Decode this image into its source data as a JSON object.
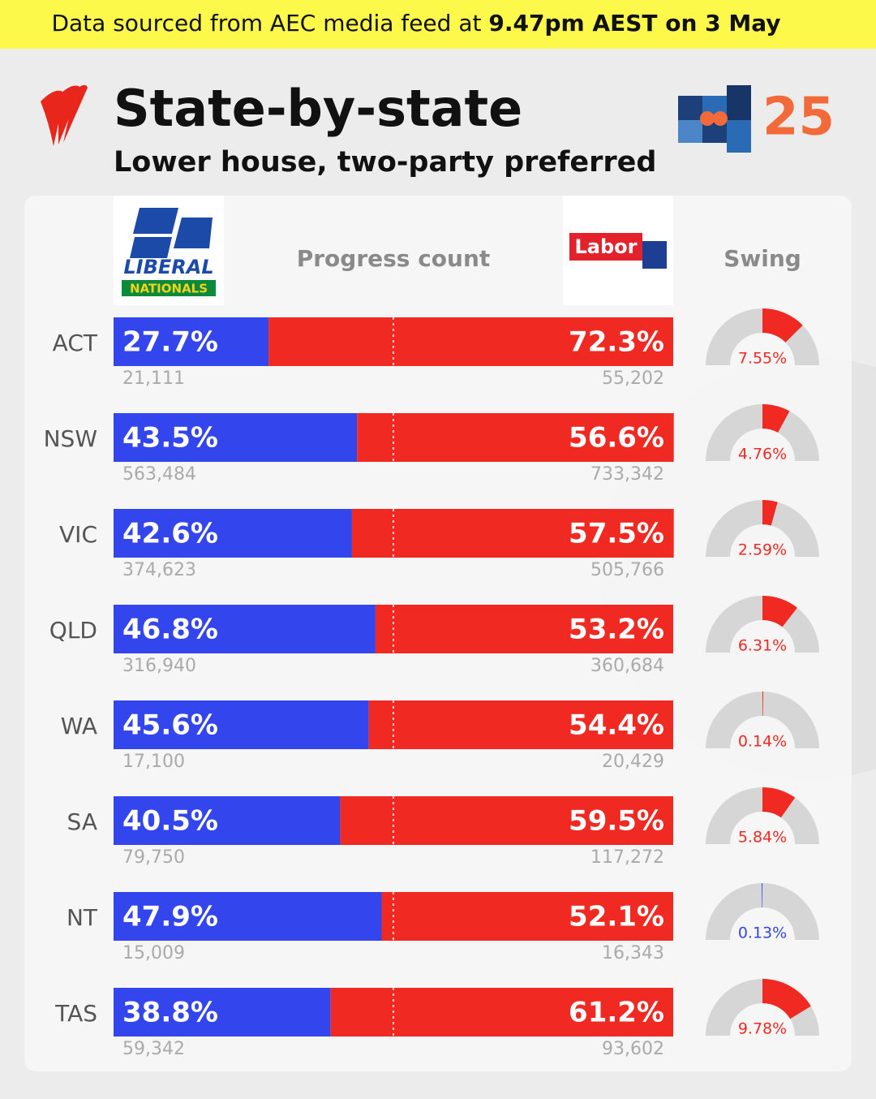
{
  "banner": {
    "text": "Data sourced from AEC media feed at ",
    "highlight": "9.47pm AEST on 3 May"
  },
  "logos": {
    "liberal": "LIBERAL",
    "nationals": "NATIONALS",
    "labor": "Labor",
    "event": "25"
  },
  "chart_data": {
    "type": "bar",
    "orientation": "horizontal",
    "stacked": true,
    "title": "State-by-state",
    "subtitle": "Lower house, two-party preferred",
    "column_headers": [
      "Progress count",
      "Swing"
    ],
    "categories": [
      "ACT",
      "NSW",
      "VIC",
      "QLD",
      "WA",
      "SA",
      "NT",
      "TAS"
    ],
    "xlim": [
      0,
      100
    ],
    "reference_line": 50,
    "series": [
      {
        "color": "#3346ee",
        "values": [
          27.7,
          43.5,
          42.6,
          46.8,
          45.6,
          40.5,
          47.9,
          38.8
        ],
        "value_labels": [
          "27.7%",
          "43.5%",
          "42.6%",
          "46.8%",
          "45.6%",
          "40.5%",
          "47.9%",
          "38.8%"
        ],
        "votes": [
          21111,
          563484,
          374623,
          316940,
          17100,
          79750,
          15009,
          59342
        ],
        "vote_labels": [
          "21,111",
          "563,484",
          "374,623",
          "316,940",
          "17,100",
          "79,750",
          "15,009",
          "59,342"
        ]
      },
      {
        "color": "#f02a22",
        "values": [
          72.3,
          56.6,
          57.5,
          53.2,
          54.4,
          59.5,
          52.1,
          61.2
        ],
        "value_labels": [
          "72.3%",
          "56.6%",
          "57.5%",
          "53.2%",
          "54.4%",
          "59.5%",
          "52.1%",
          "61.2%"
        ],
        "votes": [
          55202,
          733342,
          505766,
          360684,
          20429,
          117272,
          16343,
          93602
        ],
        "vote_labels": [
          "55,202",
          "733,342",
          "505,766",
          "360,684",
          "20,429",
          "117,272",
          "16,343",
          "93,602"
        ]
      }
    ],
    "swing": {
      "lim": [
        -15,
        15
      ],
      "values": [
        7.55,
        4.76,
        2.59,
        6.31,
        0.14,
        5.84,
        0.13,
        9.78
      ],
      "value_labels": [
        "7.55%",
        "4.76%",
        "2.59%",
        "6.31%",
        "0.14%",
        "5.84%",
        "0.13%",
        "9.78%"
      ],
      "colors": [
        "#f02a22",
        "#f02a22",
        "#f02a22",
        "#f02a22",
        "#f02a22",
        "#f02a22",
        "#3346ee",
        "#f02a22"
      ]
    }
  }
}
